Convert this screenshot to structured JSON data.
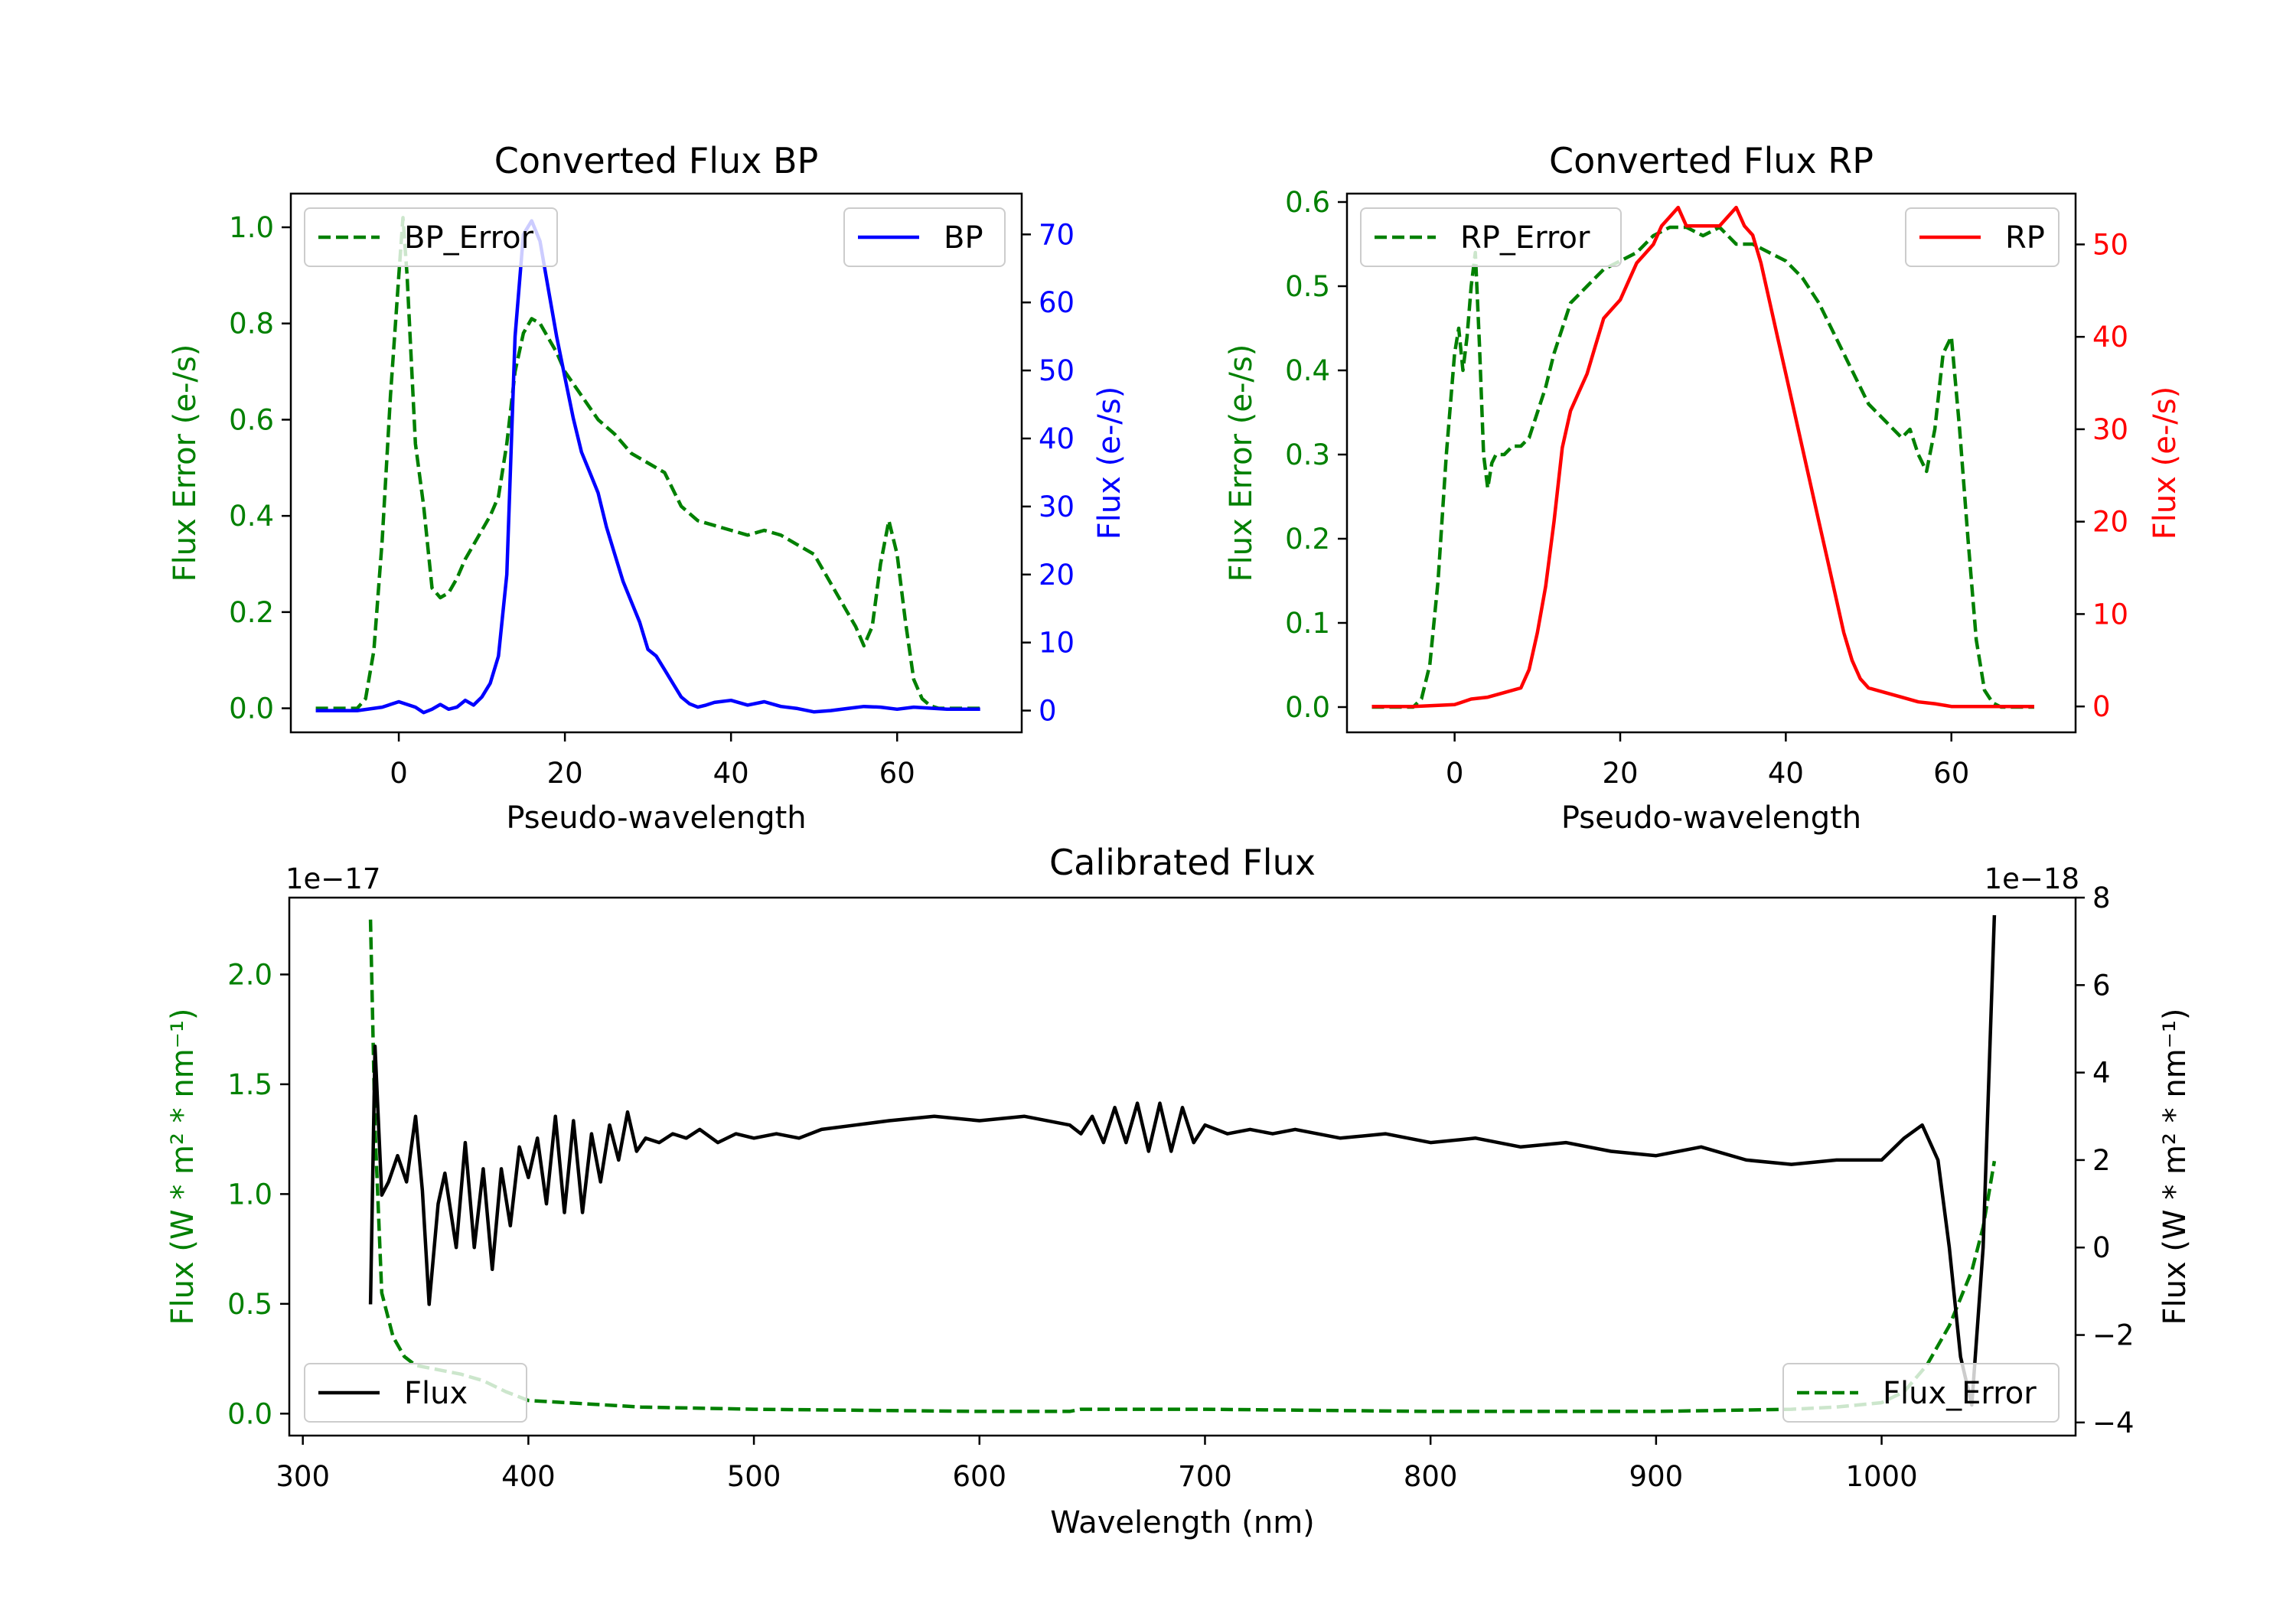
{
  "colors": {
    "green": "#008000",
    "blue": "#0000ff",
    "red": "#ff0000",
    "black": "#000000"
  },
  "chart_data": [
    {
      "type": "line",
      "title": "Converted Flux BP",
      "xlabel": "Pseudo-wavelength",
      "ylabel_left": "Flux Error (e-/s)",
      "ylabel_right": "Flux (e-/s)",
      "xlim": [
        -13,
        75
      ],
      "ylim_left": [
        -0.05,
        1.07
      ],
      "ylim_right": [
        -3.2,
        76
      ],
      "xticks": [
        "0",
        "20",
        "40",
        "60"
      ],
      "yticks_left": [
        "0.0",
        "0.2",
        "0.4",
        "0.6",
        "0.8",
        "1.0"
      ],
      "yticks_right": [
        "0",
        "10",
        "20",
        "30",
        "40",
        "50",
        "60",
        "70"
      ],
      "series": [
        {
          "name": "BP_Error",
          "axis": "left",
          "color": "green",
          "style": "dashed",
          "legend": "top-left",
          "x": [
            -10,
            -5,
            -4,
            -3,
            -2,
            -1,
            0,
            0.5,
            1,
            2,
            3,
            4,
            5,
            6,
            7,
            8,
            9,
            10,
            11,
            12,
            13,
            14,
            15,
            16,
            17,
            18,
            19,
            20,
            22,
            24,
            26,
            28,
            30,
            32,
            34,
            36,
            38,
            40,
            42,
            44,
            46,
            48,
            50,
            52,
            54,
            55,
            56,
            57,
            58,
            59,
            60,
            61,
            62,
            63,
            64,
            65,
            66,
            68,
            70
          ],
          "y": [
            0,
            0,
            0.02,
            0.12,
            0.35,
            0.65,
            0.9,
            1.02,
            0.9,
            0.55,
            0.42,
            0.25,
            0.23,
            0.24,
            0.27,
            0.31,
            0.34,
            0.37,
            0.4,
            0.44,
            0.55,
            0.7,
            0.78,
            0.81,
            0.8,
            0.77,
            0.74,
            0.7,
            0.65,
            0.6,
            0.57,
            0.53,
            0.51,
            0.49,
            0.42,
            0.39,
            0.38,
            0.37,
            0.36,
            0.37,
            0.36,
            0.34,
            0.32,
            0.26,
            0.2,
            0.17,
            0.13,
            0.17,
            0.3,
            0.39,
            0.32,
            0.18,
            0.06,
            0.02,
            0.005,
            0,
            0,
            0,
            0
          ]
        },
        {
          "name": "BP",
          "axis": "right",
          "color": "blue",
          "style": "solid",
          "legend": "top-right",
          "x": [
            -10,
            -5,
            -2,
            0,
            2,
            3,
            4,
            5,
            6,
            7,
            8,
            9,
            10,
            11,
            12,
            13,
            14,
            15,
            16,
            17,
            18,
            19,
            20,
            21,
            22,
            23,
            24,
            25,
            26,
            27,
            28,
            29,
            30,
            31,
            32,
            33,
            34,
            35,
            36,
            37,
            38,
            40,
            42,
            44,
            46,
            48,
            50,
            52,
            54,
            56,
            58,
            60,
            62,
            66,
            70
          ],
          "y": [
            0,
            0,
            0.5,
            1.3,
            0.5,
            -0.3,
            0.2,
            0.9,
            0.2,
            0.5,
            1.5,
            0.8,
            2,
            4,
            8,
            20,
            55,
            70,
            72,
            69,
            62,
            55,
            49,
            43,
            38,
            35,
            32,
            27,
            23,
            19,
            16,
            13,
            9,
            8,
            6,
            4,
            2,
            1,
            0.5,
            0.8,
            1.2,
            1.5,
            0.8,
            1.3,
            0.6,
            0.3,
            -0.2,
            0,
            0.3,
            0.6,
            0.5,
            0.2,
            0.5,
            0.2,
            0.2
          ]
        }
      ]
    },
    {
      "type": "line",
      "title": "Converted Flux RP",
      "xlabel": "Pseudo-wavelength",
      "ylabel_left": "Flux Error (e-/s)",
      "ylabel_right": "Flux (e-/s)",
      "xlim": [
        -13,
        75
      ],
      "ylim_left": [
        -0.03,
        0.61
      ],
      "ylim_right": [
        -2.8,
        55.5
      ],
      "xticks": [
        "0",
        "20",
        "40",
        "60"
      ],
      "yticks_left": [
        "0.0",
        "0.1",
        "0.2",
        "0.3",
        "0.4",
        "0.5",
        "0.6"
      ],
      "yticks_right": [
        "0",
        "10",
        "20",
        "30",
        "40",
        "50"
      ],
      "series": [
        {
          "name": "RP_Error",
          "axis": "left",
          "color": "green",
          "style": "dashed",
          "legend": "top-left",
          "x": [
            -10,
            -5,
            -4,
            -3,
            -2,
            -1,
            0,
            0.5,
            1,
            1.5,
            2,
            2.5,
            3,
            3.5,
            4,
            4.5,
            5,
            6,
            7,
            8,
            9,
            10,
            11,
            12,
            13,
            14,
            15,
            16,
            17,
            18,
            20,
            22,
            24,
            26,
            28,
            30,
            32,
            34,
            36,
            38,
            40,
            42,
            44,
            46,
            48,
            50,
            52,
            54,
            55,
            56,
            57,
            58,
            59,
            60,
            61,
            62,
            63,
            64,
            65,
            66,
            68,
            70
          ],
          "y": [
            0,
            0,
            0.01,
            0.05,
            0.15,
            0.3,
            0.42,
            0.45,
            0.4,
            0.44,
            0.5,
            0.54,
            0.43,
            0.3,
            0.26,
            0.29,
            0.3,
            0.3,
            0.31,
            0.31,
            0.32,
            0.35,
            0.38,
            0.42,
            0.45,
            0.48,
            0.49,
            0.5,
            0.51,
            0.52,
            0.53,
            0.54,
            0.56,
            0.57,
            0.57,
            0.56,
            0.57,
            0.55,
            0.55,
            0.54,
            0.53,
            0.51,
            0.48,
            0.44,
            0.4,
            0.36,
            0.34,
            0.32,
            0.33,
            0.3,
            0.28,
            0.33,
            0.42,
            0.44,
            0.33,
            0.2,
            0.08,
            0.02,
            0.005,
            0,
            0,
            0
          ]
        },
        {
          "name": "RP",
          "axis": "right",
          "color": "red",
          "style": "solid",
          "legend": "top-right",
          "x": [
            -10,
            -5,
            0,
            2,
            4,
            6,
            8,
            9,
            10,
            11,
            12,
            13,
            14,
            15,
            16,
            17,
            18,
            19,
            20,
            21,
            22,
            23,
            24,
            25,
            26,
            27,
            28,
            29,
            30,
            31,
            32,
            33,
            34,
            35,
            36,
            37,
            38,
            39,
            40,
            41,
            42,
            43,
            44,
            45,
            46,
            47,
            48,
            49,
            50,
            52,
            54,
            56,
            58,
            60,
            62,
            66,
            70
          ],
          "y": [
            0,
            0,
            0.2,
            0.8,
            1,
            1.5,
            2,
            4,
            8,
            13,
            20,
            28,
            32,
            34,
            36,
            39,
            42,
            43,
            44,
            46,
            48,
            49,
            50,
            52,
            53,
            54,
            52,
            52,
            52,
            52,
            52,
            53,
            54,
            52,
            51,
            48,
            44,
            40,
            36,
            32,
            28,
            24,
            20,
            16,
            12,
            8,
            5,
            3,
            2,
            1.5,
            1,
            0.5,
            0.3,
            0,
            0,
            0,
            0
          ]
        }
      ]
    },
    {
      "type": "line",
      "title": "Calibrated Flux",
      "xlabel": "Wavelength (nm)",
      "ylabel_left": "Flux (W * m² * nm⁻¹)",
      "ylabel_right": "Flux (W * m² * nm⁻¹)",
      "offset_left": "1e−17",
      "offset_right": "1e−18",
      "xlim": [
        294,
        1086
      ],
      "ylim_left": [
        -0.1,
        2.35
      ],
      "ylim_right": [
        -4.3,
        8
      ],
      "xticks": [
        "300",
        "400",
        "500",
        "600",
        "700",
        "800",
        "900",
        "1000"
      ],
      "yticks_left": [
        "0.0",
        "0.5",
        "1.0",
        "1.5",
        "2.0"
      ],
      "yticks_right": [
        "−4",
        "−2",
        "0",
        "2",
        "4",
        "6",
        "8"
      ],
      "series": [
        {
          "name": "Flux_Error",
          "axis": "left",
          "color": "green",
          "style": "dashed",
          "legend": "bottom-right",
          "x": [
            330,
            332,
            335,
            340,
            345,
            350,
            360,
            370,
            380,
            390,
            400,
            450,
            500,
            550,
            600,
            640,
            645,
            700,
            800,
            900,
            960,
            980,
            1000,
            1010,
            1020,
            1030,
            1040,
            1045,
            1050
          ],
          "y": [
            2.25,
            1.3,
            0.55,
            0.35,
            0.26,
            0.22,
            0.2,
            0.18,
            0.15,
            0.1,
            0.06,
            0.03,
            0.02,
            0.015,
            0.01,
            0.01,
            0.02,
            0.02,
            0.01,
            0.01,
            0.02,
            0.03,
            0.05,
            0.1,
            0.22,
            0.4,
            0.65,
            0.85,
            1.15
          ]
        },
        {
          "name": "Flux",
          "axis": "right",
          "color": "black",
          "style": "solid",
          "legend": "bottom-left",
          "x": [
            330,
            332,
            335,
            338,
            342,
            346,
            350,
            353,
            356,
            360,
            363,
            368,
            372,
            376,
            380,
            384,
            388,
            392,
            396,
            400,
            404,
            408,
            412,
            416,
            420,
            424,
            428,
            432,
            436,
            440,
            444,
            448,
            452,
            458,
            464,
            470,
            476,
            484,
            492,
            500,
            510,
            520,
            530,
            545,
            560,
            580,
            600,
            620,
            640,
            645,
            650,
            655,
            660,
            665,
            670,
            675,
            680,
            685,
            690,
            695,
            700,
            710,
            720,
            730,
            740,
            760,
            780,
            800,
            820,
            840,
            860,
            880,
            900,
            920,
            940,
            960,
            980,
            1000,
            1010,
            1018,
            1025,
            1030,
            1035,
            1040,
            1045,
            1050
          ],
          "y": [
            -1.3,
            4.6,
            1.2,
            1.5,
            2.1,
            1.5,
            3.0,
            1.3,
            -1.3,
            1.0,
            1.7,
            0.0,
            2.4,
            0.0,
            1.8,
            -0.5,
            1.8,
            0.5,
            2.3,
            1.6,
            2.5,
            1.0,
            3.0,
            0.8,
            2.9,
            0.8,
            2.6,
            1.5,
            2.8,
            2.0,
            3.1,
            2.2,
            2.5,
            2.4,
            2.6,
            2.5,
            2.7,
            2.4,
            2.6,
            2.5,
            2.6,
            2.5,
            2.7,
            2.8,
            2.9,
            3.0,
            2.9,
            3.0,
            2.8,
            2.6,
            3.0,
            2.4,
            3.2,
            2.4,
            3.3,
            2.2,
            3.3,
            2.2,
            3.2,
            2.4,
            2.8,
            2.6,
            2.7,
            2.6,
            2.7,
            2.5,
            2.6,
            2.4,
            2.5,
            2.3,
            2.4,
            2.2,
            2.1,
            2.3,
            2.0,
            1.9,
            2.0,
            2.0,
            2.5,
            2.8,
            2.0,
            0.0,
            -2.5,
            -3.6,
            0.0,
            7.6
          ]
        }
      ]
    }
  ]
}
